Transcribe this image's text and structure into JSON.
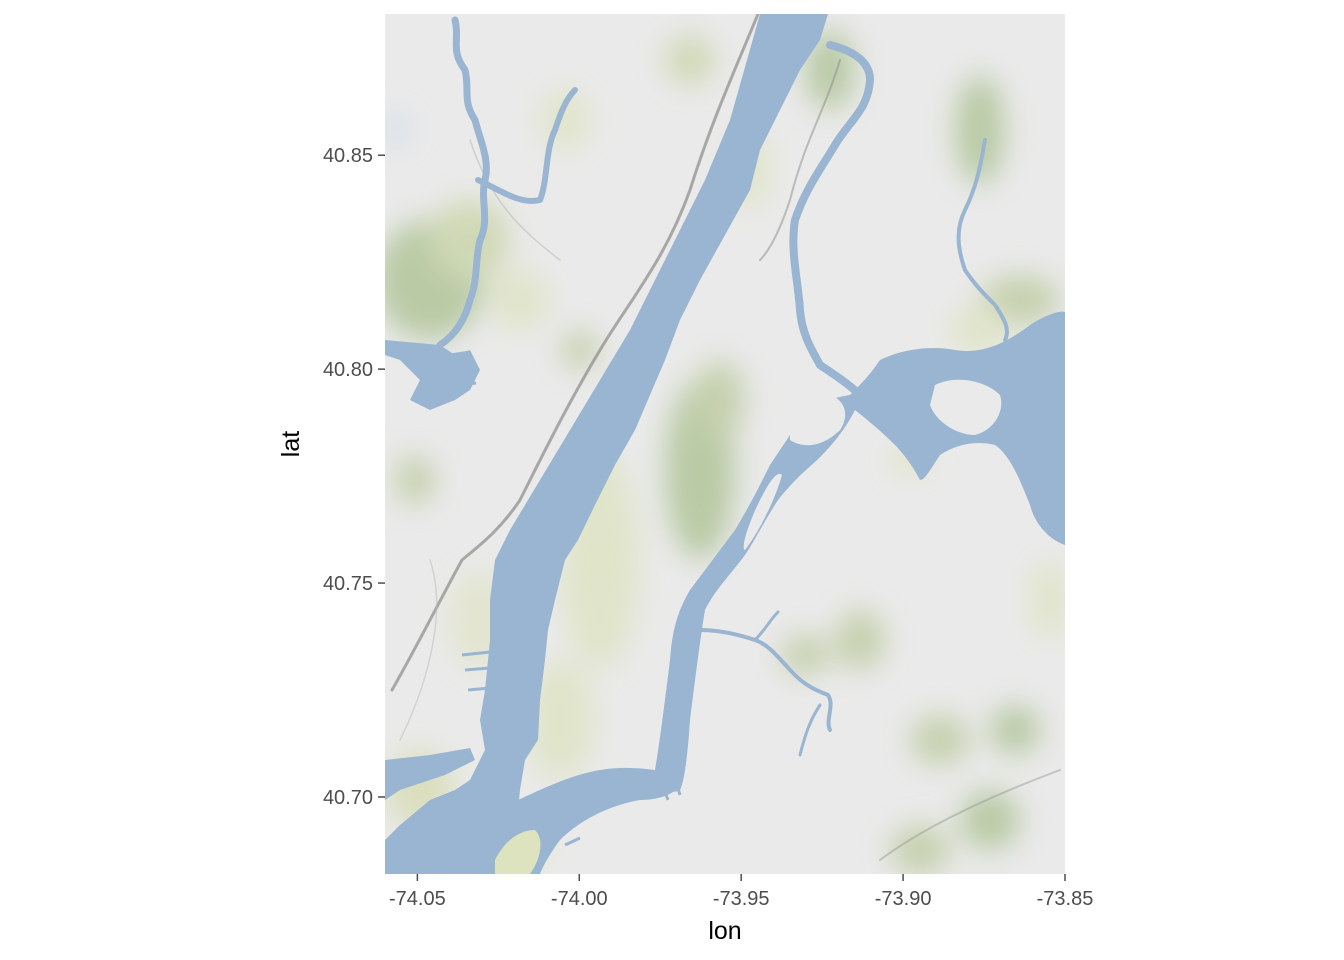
{
  "chart_data": {
    "type": "map",
    "basemap": "terrain tiles (water, parks, land) of New York City: Manhattan, Hudson River, East River, Harlem River",
    "xlabel": "lon",
    "ylabel": "lat",
    "xlim": [
      -74.06,
      -73.85
    ],
    "ylim": [
      40.682,
      40.883
    ],
    "x_ticks": [
      {
        "value": -74.05,
        "label": "-74.05"
      },
      {
        "value": -74.0,
        "label": "-74.00"
      },
      {
        "value": -73.95,
        "label": "-73.95"
      },
      {
        "value": -73.9,
        "label": "-73.90"
      },
      {
        "value": -73.85,
        "label": "-73.85"
      }
    ],
    "y_ticks": [
      {
        "value": 40.7,
        "label": "40.70"
      },
      {
        "value": 40.75,
        "label": "40.75"
      },
      {
        "value": 40.8,
        "label": "40.80"
      },
      {
        "value": 40.85,
        "label": "40.85"
      }
    ],
    "grid": false
  },
  "colors": {
    "water": "#9ab5d1",
    "land": "#eaeaea",
    "park": "#a9c08e",
    "park_light": "#dde3bf",
    "ridge": "#8a8a8a",
    "tick_text": "#4d4d4d"
  }
}
